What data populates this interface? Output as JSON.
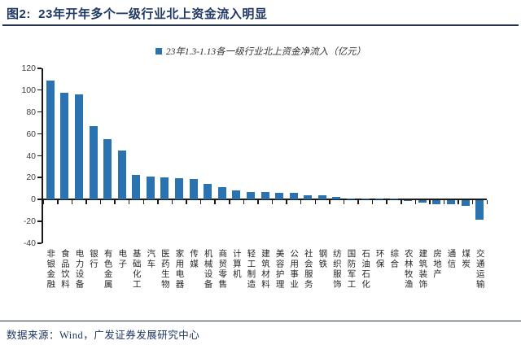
{
  "header": {
    "title": "图2:  23年开年多个一级行业北上资金流入明显"
  },
  "colors": {
    "accent_navy": "#1F3864",
    "rule_navy": "#25334E",
    "bar_blue": "#2B72B0",
    "axis_black": "#1a1a1a",
    "label_gray": "#3d3d3d"
  },
  "chart_data": {
    "type": "bar",
    "title": "23年1.3-1.13各一级行业北上资金净流入（亿元）",
    "series_name": "23年1.3-1.13各一级行业北上资金净流入（亿元）",
    "legend_position": "top-center",
    "grid": false,
    "unit": "亿元",
    "ylim": [
      -40,
      120
    ],
    "yticks": [
      120,
      100,
      80,
      60,
      40,
      20,
      0,
      -20,
      -40
    ],
    "xlabel": "",
    "ylabel": "",
    "bar_color": "#2B72B0",
    "categories": [
      "非银金融",
      "食品饮料",
      "电力设备",
      "银行",
      "有色金属",
      "电子",
      "基础化工",
      "汽车",
      "医药生物",
      "家用电器",
      "传媒",
      "机械设备",
      "商贸零售",
      "计算机",
      "轻工制造",
      "建筑材料",
      "美容护理",
      "公用事业",
      "社会服务",
      "钢铁",
      "纺织服饰",
      "国防军工",
      "石油石化",
      "环保",
      "综合",
      "农林牧渔",
      "建筑装饰",
      "房地产",
      "通信",
      "煤炭",
      "交通运输"
    ],
    "values": [
      108.8,
      97.9,
      96.1,
      67.3,
      55.0,
      44.6,
      22.8,
      21.1,
      20.6,
      19.3,
      19.0,
      14.1,
      11.7,
      8.7,
      7.0,
      6.6,
      6.4,
      6.1,
      4.2,
      3.9,
      2.5,
      1.0,
      0.5,
      0.3,
      0.1,
      -0.5,
      -2.4,
      -3.4,
      -3.7,
      -5.0,
      -18.0
    ]
  },
  "footer": {
    "source": "数据来源：Wind，广发证券发展研究中心"
  }
}
